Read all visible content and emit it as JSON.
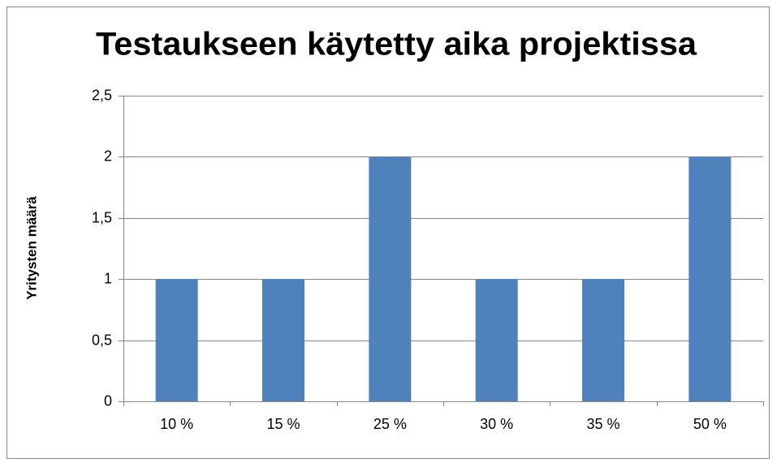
{
  "chart_data": {
    "type": "bar",
    "title": "Testaukseen käytetty aika projektissa",
    "y_label": "Yritysten määrä",
    "categories": [
      "10 %",
      "15 %",
      "25 %",
      "30 %",
      "35 %",
      "50 %"
    ],
    "values": [
      1,
      1,
      2,
      1,
      1,
      2
    ],
    "color": "#4f81bd",
    "ylim": [
      0,
      2.5
    ],
    "yticks": [
      0,
      {
        "value": 0.5,
        "label": "0,5"
      },
      1,
      {
        "value": 1.5,
        "label": "1,5"
      },
      2,
      {
        "value": 2.5,
        "label": "2,5"
      }
    ],
    "grid": true
  }
}
